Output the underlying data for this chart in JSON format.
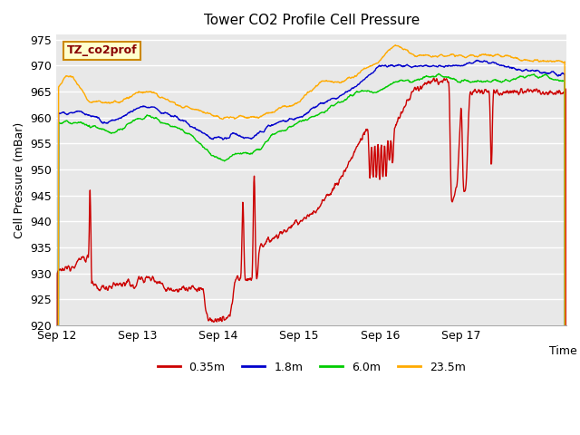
{
  "title": "Tower CO2 Profile Cell Pressure",
  "xlabel": "Time",
  "ylabel": "Cell Pressure (mBar)",
  "ylim": [
    920,
    976
  ],
  "yticks": [
    920,
    925,
    930,
    935,
    940,
    945,
    950,
    955,
    960,
    965,
    970,
    975
  ],
  "plot_bg": "#e8e8e8",
  "legend_label": "TZ_co2prof",
  "legend_bg": "#ffffcc",
  "legend_border": "#cc8800",
  "series_colors": [
    "#cc0000",
    "#0000cc",
    "#00cc00",
    "#ffaa00"
  ],
  "series_labels": [
    "0.35m",
    "1.8m",
    "6.0m",
    "23.5m"
  ],
  "x_tick_labels": [
    "Sep 12",
    "Sep 13",
    "Sep 14",
    "Sep 15",
    "Sep 16",
    "Sep 17"
  ],
  "n_points": 1200
}
